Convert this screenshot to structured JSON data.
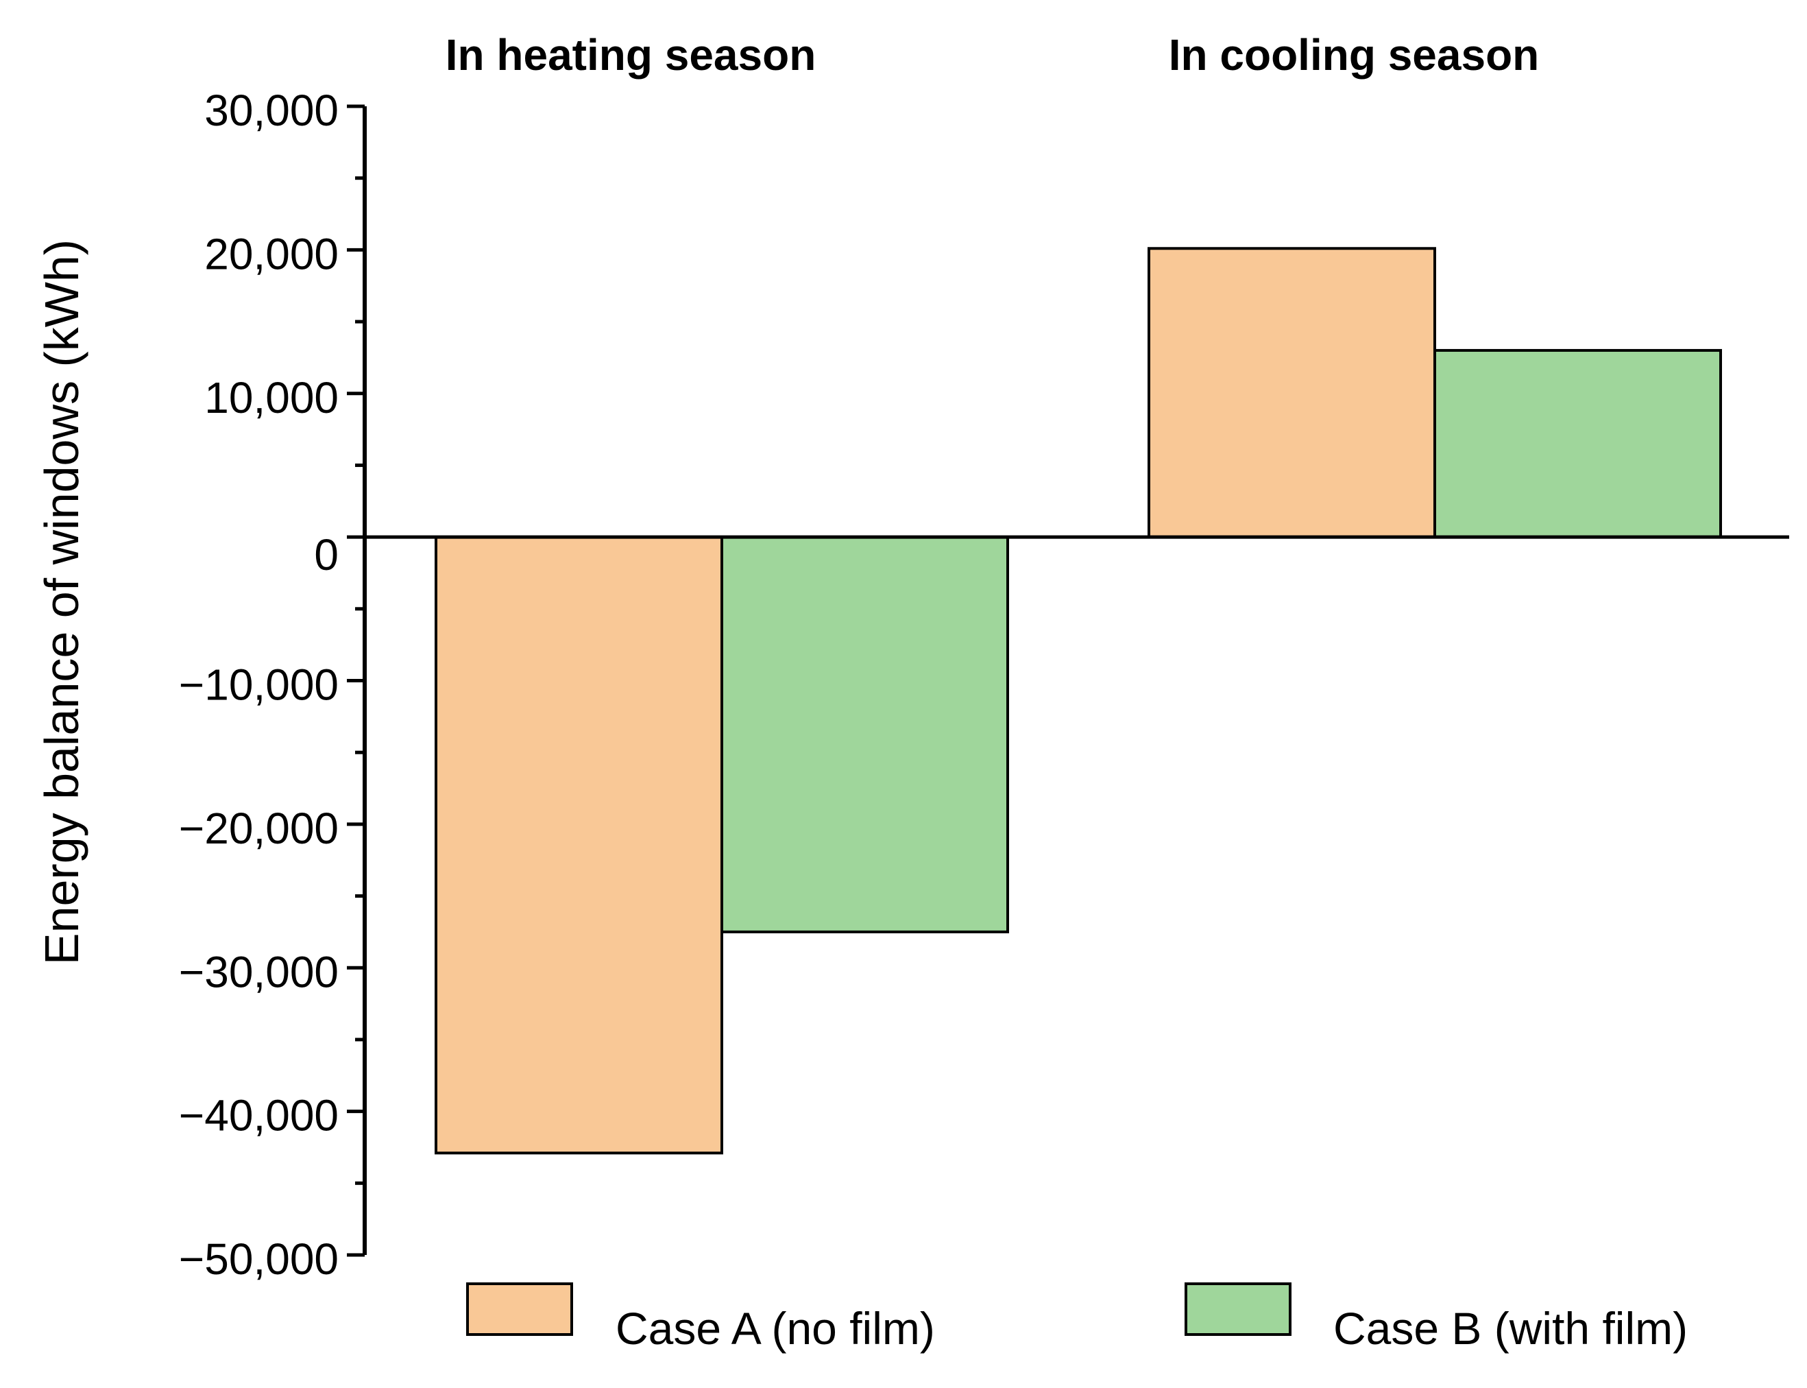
{
  "chart_data": {
    "type": "bar",
    "title": "",
    "xlabel": "",
    "ylabel": "Energy balance of windows (kWh)",
    "categories": [
      "In heating season",
      "In cooling season"
    ],
    "series": [
      {
        "name": "Case A (no film)",
        "color": "#F9C896",
        "values": [
          -42900,
          20100
        ]
      },
      {
        "name": "Case B (with film)",
        "color": "#9FD69B",
        "values": [
          -27500,
          13000
        ]
      }
    ],
    "ylim": [
      -50000,
      30000
    ],
    "yticks": [
      30000,
      20000,
      10000,
      0,
      -10000,
      -20000,
      -30000,
      -40000,
      -50000
    ],
    "ytick_labels": [
      "30,000",
      "20,000",
      "10,000",
      "0",
      "−10,000",
      "−20,000",
      "−30,000",
      "−40,000",
      "−50,000"
    ],
    "minor_tick_step": 5000,
    "grid": false,
    "legend_position": "bottom"
  }
}
